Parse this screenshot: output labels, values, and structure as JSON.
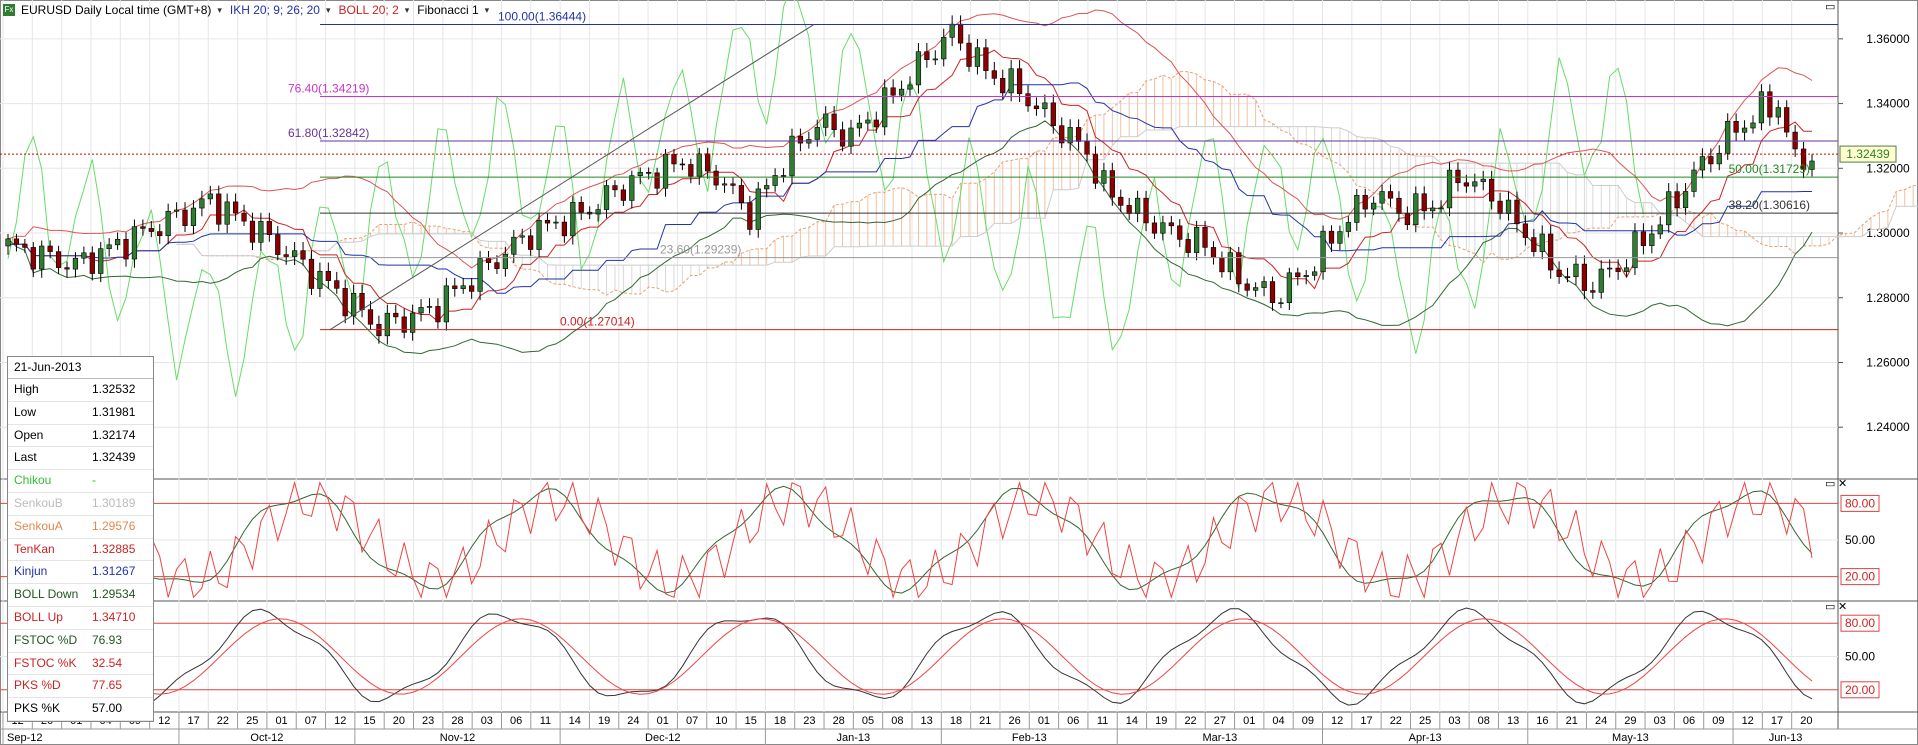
{
  "header": {
    "symbol_label": "EURUSD Daily Local time (GMT+8)",
    "ikh_label": "IKH 20; 9; 26; 20",
    "boll_label": "BOLL 20; 2",
    "fib_label": "Fibonacci 1",
    "colors": {
      "ikh": "#2233aa",
      "boll": "#cc2222",
      "fib": "#333333"
    }
  },
  "chart_data": [
    {
      "type": "candlestick",
      "title": "EURUSD Daily",
      "y_ticks": [
        "1.36000",
        "1.34000",
        "1.32000",
        "1.30000",
        "1.28000",
        "1.26000",
        "1.24000"
      ],
      "ylim": [
        1.224,
        1.372
      ],
      "last_price_label": "1.32439",
      "fibonacci": [
        {
          "label": "100.00(1.36444)",
          "value": 1.36444,
          "color": "#2233aa"
        },
        {
          "label": "76.40(1.34219)",
          "value": 1.34219,
          "color": "#cc33cc"
        },
        {
          "label": "61.80(1.32842)",
          "value": 1.32842,
          "color": "#663399"
        },
        {
          "label": "50.00(1.31729)",
          "value": 1.31729,
          "color": "#228822"
        },
        {
          "label": "38.20(1.30616)",
          "value": 1.30616,
          "color": "#333333"
        },
        {
          "label": "23.60(1.29239)",
          "value": 1.29239,
          "color": "#999999"
        },
        {
          "label": "0.00(1.27014)",
          "value": 1.27014,
          "color": "#cc2222"
        }
      ],
      "series_info": [
        {
          "name": "Chikou",
          "color": "#44cc44"
        },
        {
          "name": "SenkouB",
          "color": "#cccccc"
        },
        {
          "name": "SenkouA",
          "color": "#e8a070"
        },
        {
          "name": "TenKan",
          "color": "#cc2222"
        },
        {
          "name": "Kinjun",
          "color": "#2233aa"
        },
        {
          "name": "BOLL Down",
          "color": "#225522"
        },
        {
          "name": "BOLL Up",
          "color": "#cc2222"
        }
      ]
    },
    {
      "type": "line",
      "title": "FSTOC",
      "y_ticks": [
        "80.00",
        "50.00",
        "20.00"
      ],
      "ylim": [
        0,
        100
      ],
      "series": [
        {
          "name": "FSTOC %D"
        },
        {
          "name": "FSTOC %K"
        }
      ]
    },
    {
      "type": "line",
      "title": "PKS",
      "y_ticks": [
        "80.00",
        "50.00",
        "20.00"
      ],
      "ylim": [
        0,
        100
      ],
      "series": [
        {
          "name": "PKS %D"
        },
        {
          "name": "PKS %K"
        }
      ]
    }
  ],
  "x_axis": {
    "days": [
      "12",
      "26",
      "01",
      "04",
      "09",
      "12",
      "17",
      "22",
      "25",
      "01",
      "07",
      "12",
      "15",
      "20",
      "23",
      "28",
      "03",
      "06",
      "11",
      "14",
      "19",
      "24",
      "01",
      "07",
      "10",
      "15",
      "18",
      "23",
      "28",
      "05",
      "08",
      "13",
      "18",
      "21",
      "26",
      "01",
      "06",
      "11",
      "14",
      "19",
      "22",
      "27",
      "01",
      "04",
      "09",
      "12",
      "17",
      "22",
      "25",
      "03",
      "08",
      "13",
      "16",
      "21",
      "24",
      "29",
      "03",
      "06",
      "09",
      "12",
      "17",
      "20"
    ],
    "months": [
      "Sep-12",
      "Oct-12",
      "Nov-12",
      "Dec-12",
      "Jan-13",
      "Feb-13",
      "Mar-13",
      "Apr-13",
      "May-13",
      "Jun-13"
    ]
  },
  "infobox": {
    "date": "21-Jun-2013",
    "rows": [
      {
        "label": "High",
        "value": "1.32532",
        "color": "#000000"
      },
      {
        "label": "Low",
        "value": "1.31981",
        "color": "#000000"
      },
      {
        "label": "Open",
        "value": "1.32174",
        "color": "#000000"
      },
      {
        "label": "Last",
        "value": "1.32439",
        "color": "#000000"
      },
      {
        "label": "Chikou",
        "value": "-",
        "color": "#33bb33"
      },
      {
        "label": "SenkouB",
        "value": "1.30189",
        "color": "#bbbbbb"
      },
      {
        "label": "SenkouA",
        "value": "1.29576",
        "color": "#e08a50"
      },
      {
        "label": "TenKan",
        "value": "1.32885",
        "color": "#cc2222"
      },
      {
        "label": "Kinjun",
        "value": "1.31267",
        "color": "#2233aa"
      },
      {
        "label": "BOLL Down",
        "value": "1.29534",
        "color": "#225522"
      },
      {
        "label": "BOLL Up",
        "value": "1.34710",
        "color": "#cc2222"
      },
      {
        "label": "FSTOC %D",
        "value": "76.93",
        "color": "#225522"
      },
      {
        "label": "FSTOC %K",
        "value": "32.54",
        "color": "#cc2222"
      },
      {
        "label": "PKS %D",
        "value": "77.65",
        "color": "#cc2222"
      },
      {
        "label": "PKS %K",
        "value": "57.00",
        "color": "#000000"
      }
    ]
  },
  "pane_buttons": {
    "restore": "▭",
    "close": "✕"
  }
}
